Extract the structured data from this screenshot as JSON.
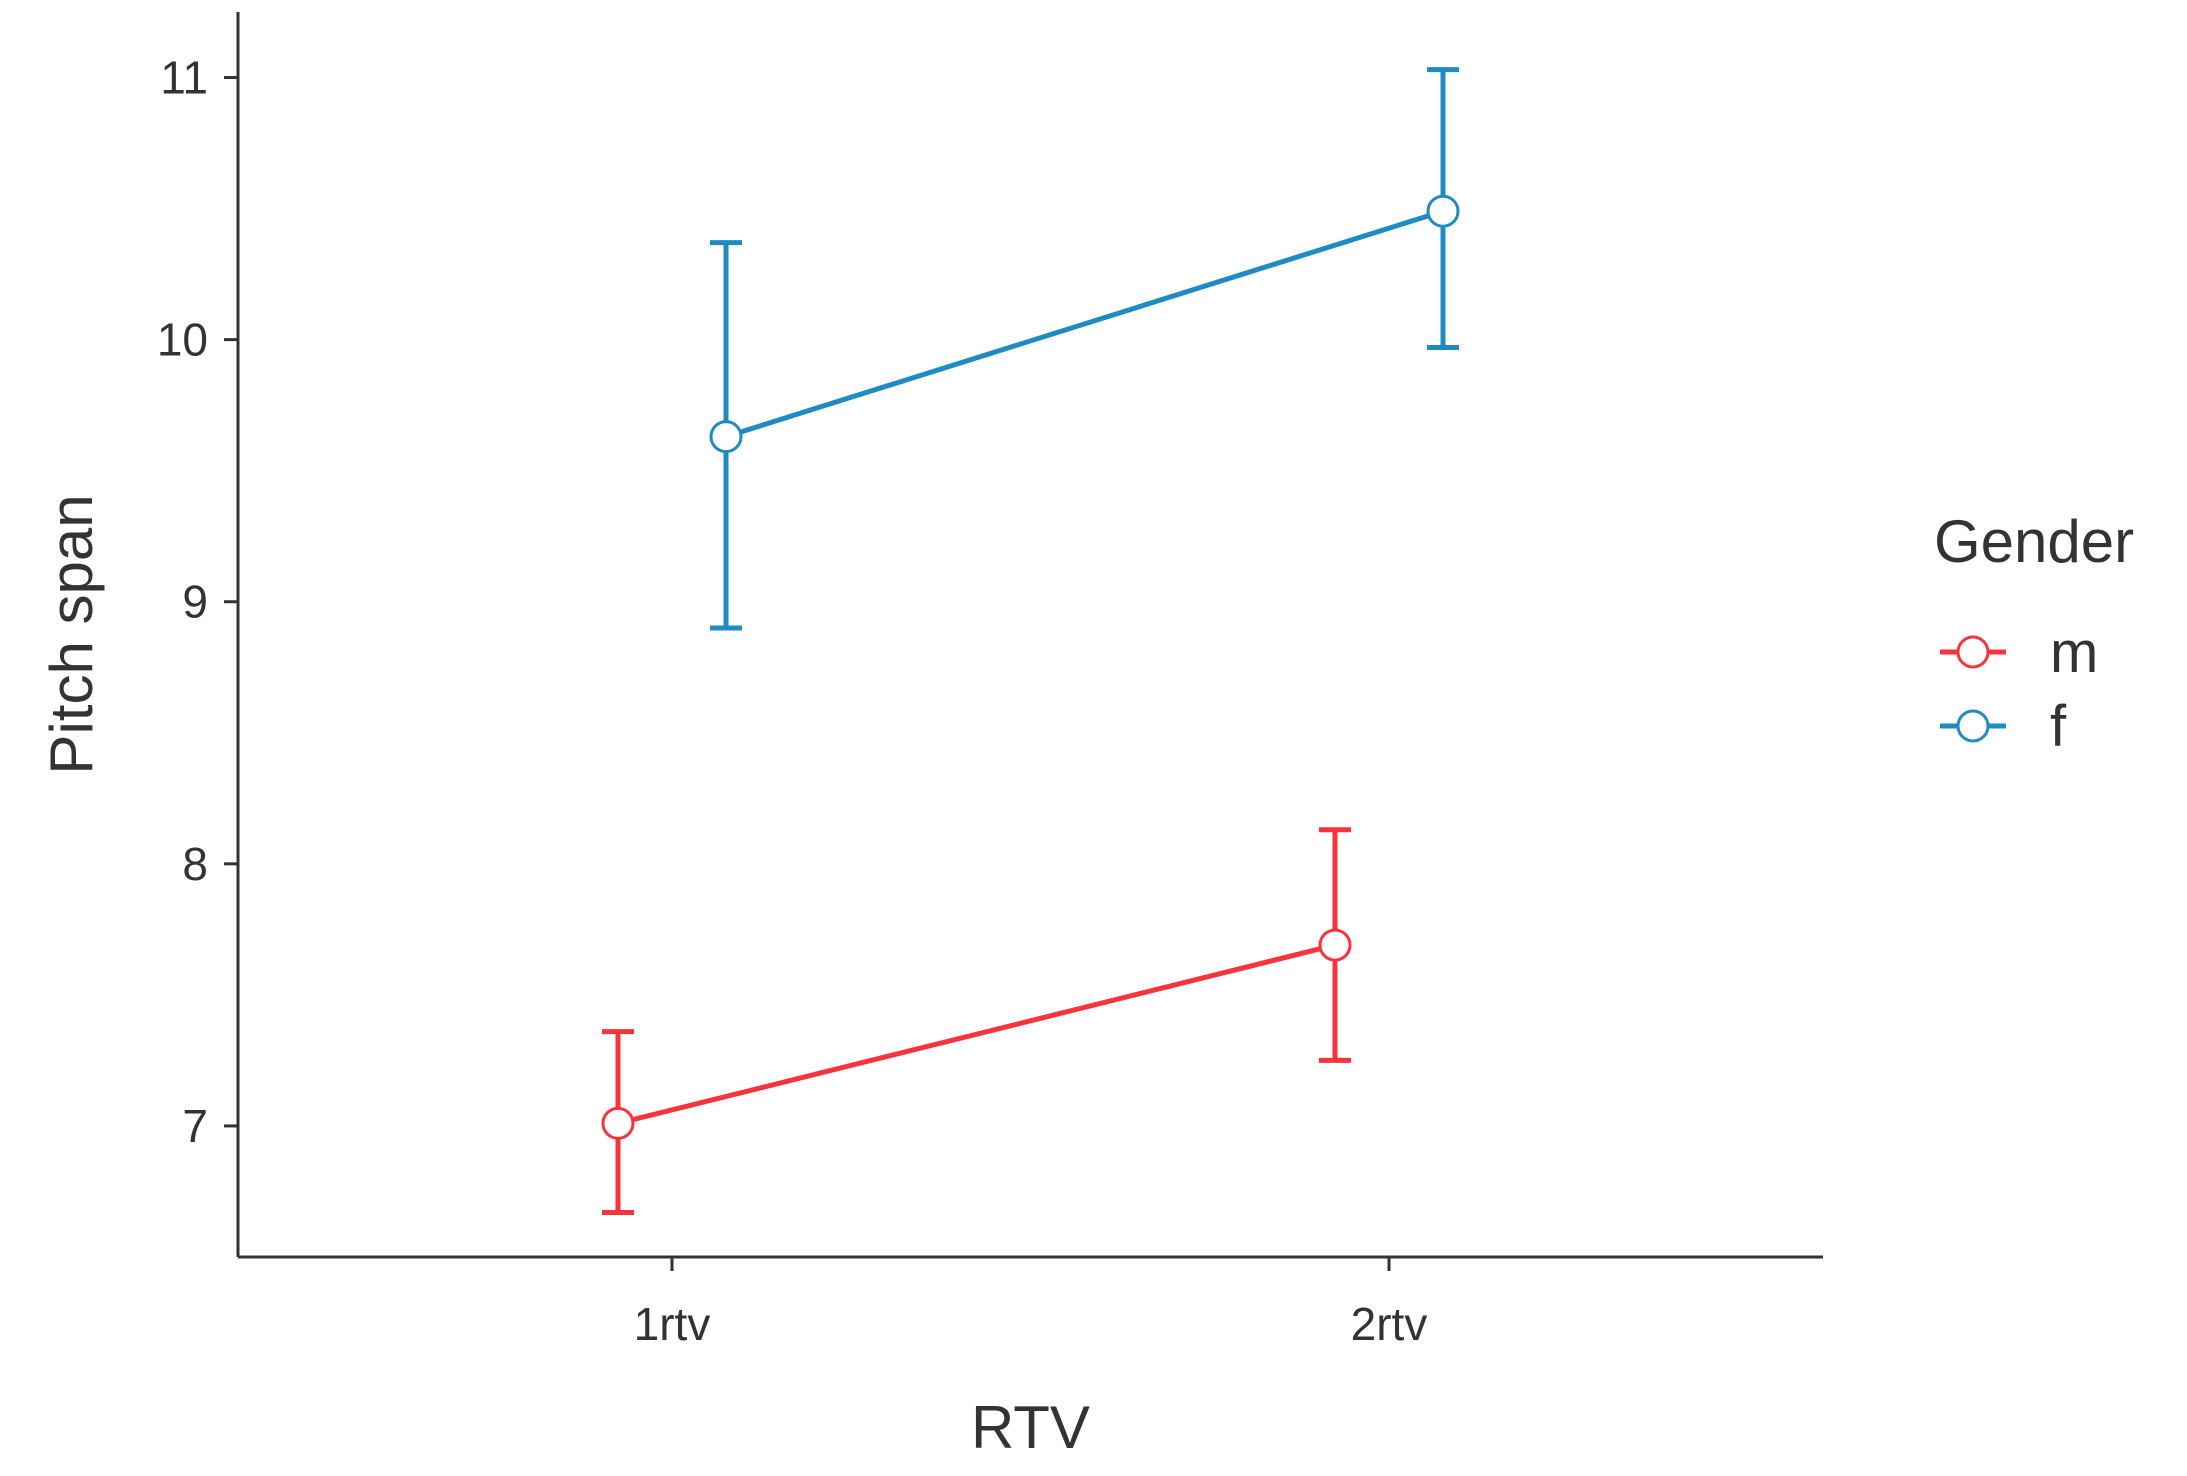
{
  "chart_data": {
    "type": "line",
    "title": "",
    "xlabel": "RTV",
    "ylabel": "Pitch span",
    "categories": [
      "1rtv",
      "2rtv"
    ],
    "ylim": [
      6.5,
      11.25
    ],
    "yticks": [
      7,
      8,
      9,
      10,
      11
    ],
    "ytick_labels": [
      "7",
      "8",
      "9",
      "10",
      "11"
    ],
    "grid": false,
    "legend": {
      "title": "Gender",
      "placement": "right"
    },
    "series": [
      {
        "name": "m",
        "color": "#f8333c",
        "values": [
          7.01,
          7.69
        ],
        "error_low": [
          6.67,
          7.25
        ],
        "error_high": [
          7.36,
          8.13
        ]
      },
      {
        "name": "f",
        "color": "#1e8bc3",
        "values": [
          9.63,
          10.49
        ],
        "error_low": [
          8.9,
          9.97
        ],
        "error_high": [
          10.37,
          11.03
        ]
      }
    ]
  }
}
